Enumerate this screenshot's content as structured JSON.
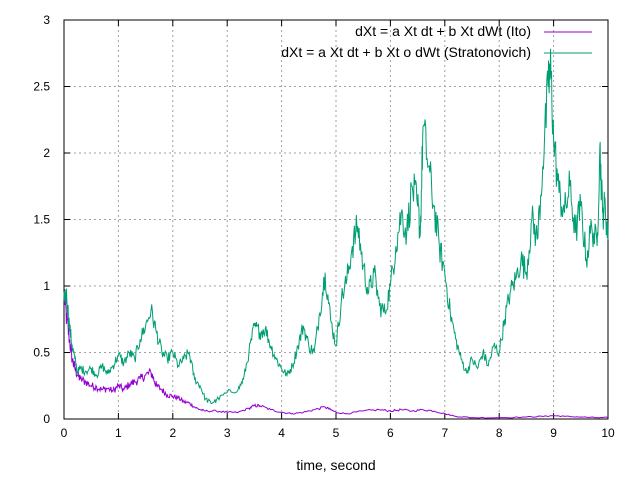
{
  "chart_data": {
    "type": "line",
    "title": "",
    "xlabel": "time, second",
    "ylabel": "",
    "xlim": [
      0,
      10
    ],
    "ylim": [
      0,
      3
    ],
    "grid": true,
    "legend_position": "top-right",
    "x_ticks": [
      "0",
      "1",
      "2",
      "3",
      "4",
      "5",
      "6",
      "7",
      "8",
      "9",
      "10"
    ],
    "y_ticks": [
      "0",
      "0.5",
      "1",
      "1.5",
      "2",
      "2.5",
      "3"
    ],
    "series": [
      {
        "name": "dXt = a Xt dt + b Xt dWt (Ito)",
        "color": "#9400d3",
        "points": [
          [
            0,
            0.95
          ],
          [
            0.05,
            0.75
          ],
          [
            0.1,
            0.6
          ],
          [
            0.15,
            0.45
          ],
          [
            0.2,
            0.38
          ],
          [
            0.25,
            0.33
          ],
          [
            0.3,
            0.3
          ],
          [
            0.4,
            0.28
          ],
          [
            0.5,
            0.25
          ],
          [
            0.6,
            0.24
          ],
          [
            0.7,
            0.22
          ],
          [
            0.8,
            0.23
          ],
          [
            0.9,
            0.21
          ],
          [
            1.0,
            0.25
          ],
          [
            1.1,
            0.22
          ],
          [
            1.2,
            0.26
          ],
          [
            1.3,
            0.28
          ],
          [
            1.4,
            0.3
          ],
          [
            1.5,
            0.33
          ],
          [
            1.6,
            0.35
          ],
          [
            1.65,
            0.3
          ],
          [
            1.7,
            0.25
          ],
          [
            1.8,
            0.22
          ],
          [
            1.9,
            0.18
          ],
          [
            2.0,
            0.17
          ],
          [
            2.1,
            0.16
          ],
          [
            2.2,
            0.13
          ],
          [
            2.3,
            0.12
          ],
          [
            2.4,
            0.09
          ],
          [
            2.5,
            0.07
          ],
          [
            2.6,
            0.06
          ],
          [
            2.8,
            0.06
          ],
          [
            3.0,
            0.05
          ],
          [
            3.2,
            0.05
          ],
          [
            3.4,
            0.08
          ],
          [
            3.5,
            0.1
          ],
          [
            3.6,
            0.1
          ],
          [
            3.8,
            0.07
          ],
          [
            4.0,
            0.05
          ],
          [
            4.2,
            0.04
          ],
          [
            4.4,
            0.05
          ],
          [
            4.6,
            0.07
          ],
          [
            4.8,
            0.09
          ],
          [
            4.9,
            0.07
          ],
          [
            5.0,
            0.05
          ],
          [
            5.2,
            0.04
          ],
          [
            5.5,
            0.06
          ],
          [
            5.8,
            0.07
          ],
          [
            6.0,
            0.06
          ],
          [
            6.2,
            0.07
          ],
          [
            6.4,
            0.06
          ],
          [
            6.6,
            0.07
          ],
          [
            6.8,
            0.06
          ],
          [
            7.0,
            0.04
          ],
          [
            7.2,
            0.02
          ],
          [
            7.5,
            0.01
          ],
          [
            8.0,
            0.01
          ],
          [
            8.5,
            0.015
          ],
          [
            8.8,
            0.02
          ],
          [
            9.0,
            0.025
          ],
          [
            9.2,
            0.02
          ],
          [
            9.5,
            0.015
          ],
          [
            9.8,
            0.01
          ],
          [
            10.0,
            0.01
          ]
        ]
      },
      {
        "name": "dXt = a Xt dt + b Xt o dWt (Stratonovich)",
        "color": "#009e73",
        "points": [
          [
            0,
            0.95
          ],
          [
            0.05,
            0.92
          ],
          [
            0.1,
            0.7
          ],
          [
            0.15,
            0.55
          ],
          [
            0.2,
            0.45
          ],
          [
            0.25,
            0.35
          ],
          [
            0.3,
            0.38
          ],
          [
            0.4,
            0.36
          ],
          [
            0.5,
            0.38
          ],
          [
            0.6,
            0.33
          ],
          [
            0.7,
            0.4
          ],
          [
            0.8,
            0.34
          ],
          [
            0.9,
            0.4
          ],
          [
            1.0,
            0.48
          ],
          [
            1.1,
            0.42
          ],
          [
            1.2,
            0.5
          ],
          [
            1.3,
            0.45
          ],
          [
            1.4,
            0.6
          ],
          [
            1.5,
            0.7
          ],
          [
            1.6,
            0.82
          ],
          [
            1.7,
            0.65
          ],
          [
            1.8,
            0.5
          ],
          [
            1.9,
            0.45
          ],
          [
            2.0,
            0.5
          ],
          [
            2.1,
            0.4
          ],
          [
            2.2,
            0.45
          ],
          [
            2.3,
            0.5
          ],
          [
            2.4,
            0.3
          ],
          [
            2.5,
            0.25
          ],
          [
            2.6,
            0.15
          ],
          [
            2.7,
            0.12
          ],
          [
            2.8,
            0.14
          ],
          [
            3.0,
            0.2
          ],
          [
            3.2,
            0.22
          ],
          [
            3.3,
            0.3
          ],
          [
            3.4,
            0.5
          ],
          [
            3.5,
            0.7
          ],
          [
            3.6,
            0.65
          ],
          [
            3.7,
            0.68
          ],
          [
            3.8,
            0.55
          ],
          [
            3.9,
            0.45
          ],
          [
            4.0,
            0.38
          ],
          [
            4.1,
            0.33
          ],
          [
            4.2,
            0.4
          ],
          [
            4.3,
            0.55
          ],
          [
            4.4,
            0.7
          ],
          [
            4.5,
            0.55
          ],
          [
            4.6,
            0.5
          ],
          [
            4.7,
            0.8
          ],
          [
            4.8,
            1.1
          ],
          [
            4.9,
            0.75
          ],
          [
            5.0,
            0.55
          ],
          [
            5.1,
            0.9
          ],
          [
            5.2,
            1.05
          ],
          [
            5.3,
            1.3
          ],
          [
            5.4,
            1.45
          ],
          [
            5.5,
            1.15
          ],
          [
            5.6,
            0.95
          ],
          [
            5.7,
            1.1
          ],
          [
            5.8,
            0.85
          ],
          [
            5.9,
            0.8
          ],
          [
            6.0,
            1.0
          ],
          [
            6.1,
            1.3
          ],
          [
            6.2,
            1.55
          ],
          [
            6.3,
            1.4
          ],
          [
            6.4,
            1.75
          ],
          [
            6.5,
            1.6
          ],
          [
            6.55,
            1.4
          ],
          [
            6.6,
            2.2
          ],
          [
            6.7,
            1.9
          ],
          [
            6.8,
            1.6
          ],
          [
            6.9,
            1.3
          ],
          [
            7.0,
            1.1
          ],
          [
            7.1,
            0.8
          ],
          [
            7.2,
            0.6
          ],
          [
            7.3,
            0.45
          ],
          [
            7.4,
            0.35
          ],
          [
            7.5,
            0.45
          ],
          [
            7.6,
            0.38
          ],
          [
            7.7,
            0.5
          ],
          [
            7.8,
            0.4
          ],
          [
            7.9,
            0.55
          ],
          [
            8.0,
            0.5
          ],
          [
            8.1,
            0.75
          ],
          [
            8.2,
            0.95
          ],
          [
            8.3,
            1.05
          ],
          [
            8.4,
            1.2
          ],
          [
            8.5,
            1.1
          ],
          [
            8.6,
            1.5
          ],
          [
            8.7,
            1.35
          ],
          [
            8.8,
            1.9
          ],
          [
            8.9,
            2.5
          ],
          [
            8.95,
            2.62
          ],
          [
            9.0,
            2.1
          ],
          [
            9.1,
            1.7
          ],
          [
            9.2,
            1.55
          ],
          [
            9.3,
            1.75
          ],
          [
            9.4,
            1.4
          ],
          [
            9.5,
            1.6
          ],
          [
            9.6,
            1.2
          ],
          [
            9.7,
            1.45
          ],
          [
            9.8,
            1.3
          ],
          [
            9.85,
            2.05
          ],
          [
            9.9,
            1.55
          ],
          [
            9.95,
            1.6
          ],
          [
            10.0,
            1.35
          ]
        ]
      }
    ]
  }
}
